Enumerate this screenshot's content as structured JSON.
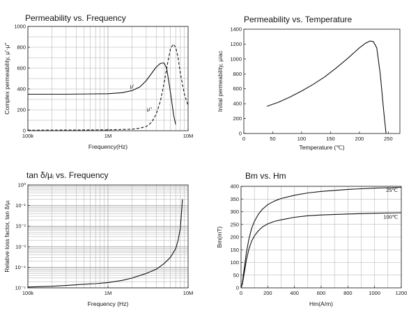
{
  "chart_data": [
    {
      "type": "line",
      "title": "Permeability vs. Frequency",
      "xlabel": "Frequency(Hz)",
      "ylabel": "Complex permeability, μ'·μ''",
      "xscale": "log",
      "xlim": [
        100000,
        10000000
      ],
      "ylim": [
        0,
        1000
      ],
      "x_ticks": [
        100000,
        1000000,
        10000000
      ],
      "x_tick_labels": [
        "100k",
        "1M",
        "10M"
      ],
      "y_ticks": [
        0,
        200,
        400,
        600,
        800,
        1000
      ],
      "y_tick_labels": [
        "0",
        "200",
        "400",
        "600",
        "800",
        "1000"
      ],
      "grid": true,
      "series": [
        {
          "name": "μ'",
          "style": "solid",
          "x": [
            100000,
            300000,
            1000000,
            1500000,
            2000000,
            2500000,
            3000000,
            3500000,
            4000000,
            4500000,
            5000000,
            5400000,
            5800000,
            6200000,
            6600000,
            7000000
          ],
          "y": [
            350,
            350,
            355,
            365,
            385,
            420,
            480,
            550,
            610,
            645,
            650,
            600,
            450,
            300,
            150,
            60
          ]
        },
        {
          "name": "μ''",
          "style": "dashed",
          "x": [
            100000,
            1000000,
            2000000,
            2500000,
            3000000,
            3500000,
            4000000,
            4500000,
            5000000,
            5500000,
            6000000,
            6500000,
            7000000,
            7500000,
            8000000,
            9000000,
            10000000
          ],
          "y": [
            5,
            8,
            15,
            25,
            40,
            80,
            160,
            280,
            450,
            630,
            780,
            830,
            800,
            700,
            550,
            350,
            240
          ]
        }
      ],
      "annotations": [
        {
          "text": "μ'",
          "x": 2000000,
          "y": 410
        },
        {
          "text": "μ''",
          "x": 3300000,
          "y": 190
        }
      ]
    },
    {
      "type": "line",
      "title": "Permeability vs. Temperature",
      "xlabel": "Temperature (℃)",
      "ylabel": "Initial permeability, μiac",
      "xlim": [
        0,
        270
      ],
      "ylim": [
        0,
        1400
      ],
      "x_ticks": [
        0,
        50,
        100,
        150,
        200,
        250
      ],
      "x_tick_labels": [
        "0",
        "50",
        "100",
        "150",
        "200",
        "250"
      ],
      "y_ticks": [
        0,
        200,
        400,
        600,
        800,
        1000,
        1200,
        1400
      ],
      "y_tick_labels": [
        "0",
        "200",
        "400",
        "600",
        "800",
        "1000",
        "1200",
        "1400"
      ],
      "grid": false,
      "series": [
        {
          "name": "",
          "style": "solid",
          "x": [
            40,
            60,
            80,
            100,
            120,
            140,
            160,
            180,
            200,
            210,
            218,
            224,
            230,
            236,
            242,
            246
          ],
          "y": [
            365,
            420,
            490,
            570,
            660,
            760,
            880,
            1010,
            1150,
            1210,
            1240,
            1235,
            1150,
            800,
            300,
            0
          ]
        }
      ]
    },
    {
      "type": "line",
      "title": "tan δ/μᵢ vs. Frequency",
      "xlabel": "Frequency (Hz)",
      "ylabel": "Relative loss factor, tan δ/μᵢ",
      "xscale": "log",
      "yscale": "log",
      "xlim": [
        100000,
        10000000
      ],
      "ylim": [
        1e-05,
        1
      ],
      "x_ticks": [
        100000,
        1000000,
        10000000
      ],
      "x_tick_labels": [
        "100k",
        "1M",
        "10M"
      ],
      "y_ticks": [
        1e-05,
        0.0001,
        0.001,
        0.01,
        0.1,
        1
      ],
      "y_tick_labels": [
        "10⁻⁵",
        "10⁻⁴",
        "10⁻³",
        "10⁻²",
        "10⁻¹",
        "10⁰"
      ],
      "grid": true,
      "series": [
        {
          "name": "",
          "style": "solid",
          "x": [
            100000,
            200000,
            300000,
            500000,
            700000,
            1000000,
            1500000,
            2000000,
            3000000,
            4000000,
            5000000,
            6000000,
            7000000,
            7500000,
            8000000,
            8500000
          ],
          "y": [
            1.1e-05,
            1.2e-05,
            1.3e-05,
            1.5e-05,
            1.6e-05,
            1.8e-05,
            2.3e-05,
            3e-05,
            5e-05,
            8e-05,
            0.00015,
            0.0003,
            0.0008,
            0.002,
            0.008,
            0.2
          ]
        }
      ]
    },
    {
      "type": "line",
      "title": "Bm vs. Hm",
      "xlabel": "Hm(A/m)",
      "ylabel": "Bm(mT)",
      "xlim": [
        0,
        1200
      ],
      "ylim": [
        0,
        400
      ],
      "x_ticks": [
        0,
        200,
        400,
        600,
        800,
        1000,
        1200
      ],
      "x_tick_labels": [
        "0",
        "200",
        "400",
        "600",
        "800",
        "1000",
        "1200"
      ],
      "y_ticks": [
        0,
        50,
        100,
        150,
        200,
        250,
        300,
        350,
        400
      ],
      "y_tick_labels": [
        "0",
        "50",
        "100",
        "150",
        "200",
        "250",
        "300",
        "350",
        "400"
      ],
      "grid": true,
      "series": [
        {
          "name": "25℃",
          "style": "solid",
          "x": [
            0,
            10,
            20,
            40,
            60,
            80,
            100,
            130,
            160,
            200,
            250,
            300,
            400,
            500,
            600,
            800,
            1000,
            1200
          ],
          "y": [
            0,
            20,
            60,
            140,
            195,
            235,
            262,
            290,
            310,
            328,
            342,
            352,
            365,
            374,
            380,
            388,
            393,
            396
          ]
        },
        {
          "name": "100℃",
          "style": "solid",
          "x": [
            0,
            10,
            20,
            40,
            60,
            80,
            100,
            130,
            160,
            200,
            250,
            300,
            400,
            500,
            600,
            800,
            1000,
            1200
          ],
          "y": [
            0,
            15,
            45,
            110,
            155,
            185,
            205,
            225,
            240,
            252,
            262,
            268,
            278,
            284,
            287,
            291,
            294,
            296
          ]
        }
      ],
      "annotations": [
        {
          "text": "25℃",
          "x": 1130,
          "y": 378
        },
        {
          "text": "100℃",
          "x": 1120,
          "y": 273
        }
      ]
    }
  ]
}
